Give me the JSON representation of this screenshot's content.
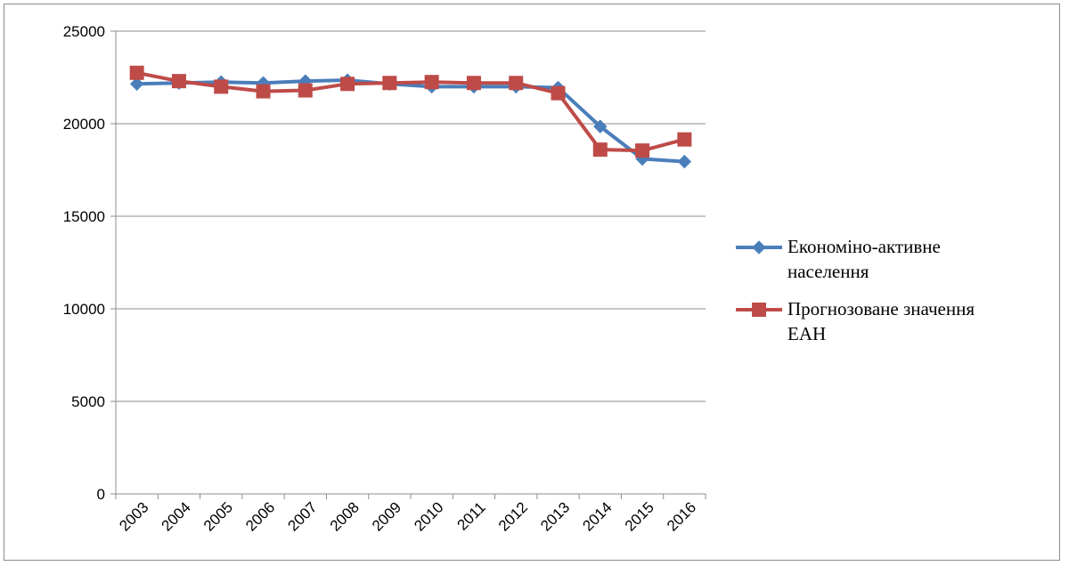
{
  "chart_data": {
    "type": "line",
    "title": "",
    "xlabel": "",
    "ylabel": "",
    "ylim": [
      0,
      25000
    ],
    "yticks": [
      0,
      5000,
      10000,
      15000,
      20000,
      25000
    ],
    "grid": true,
    "legend_position": "right",
    "categories": [
      "2003",
      "2004",
      "2005",
      "2006",
      "2007",
      "2008",
      "2009",
      "2010",
      "2011",
      "2012",
      "2013",
      "2014",
      "2015",
      "2016"
    ],
    "series": [
      {
        "name": "Економіно-активне населення",
        "legend_lines": [
          "Економіно-активне",
          "населення"
        ],
        "color": "#4a7ebb",
        "marker": "diamond",
        "values": [
          22150,
          22200,
          22250,
          22200,
          22300,
          22350,
          22150,
          22000,
          22000,
          22000,
          21950,
          19850,
          18100,
          17950
        ]
      },
      {
        "name": "Прогнозоване значення ЕАН",
        "legend_lines": [
          "Прогнозоване значення",
          "ЕАН"
        ],
        "color": "#be4b48",
        "marker": "square",
        "values": [
          22750,
          22300,
          22000,
          21750,
          21800,
          22150,
          22200,
          22250,
          22200,
          22200,
          21650,
          18600,
          18550,
          19150
        ]
      }
    ]
  }
}
